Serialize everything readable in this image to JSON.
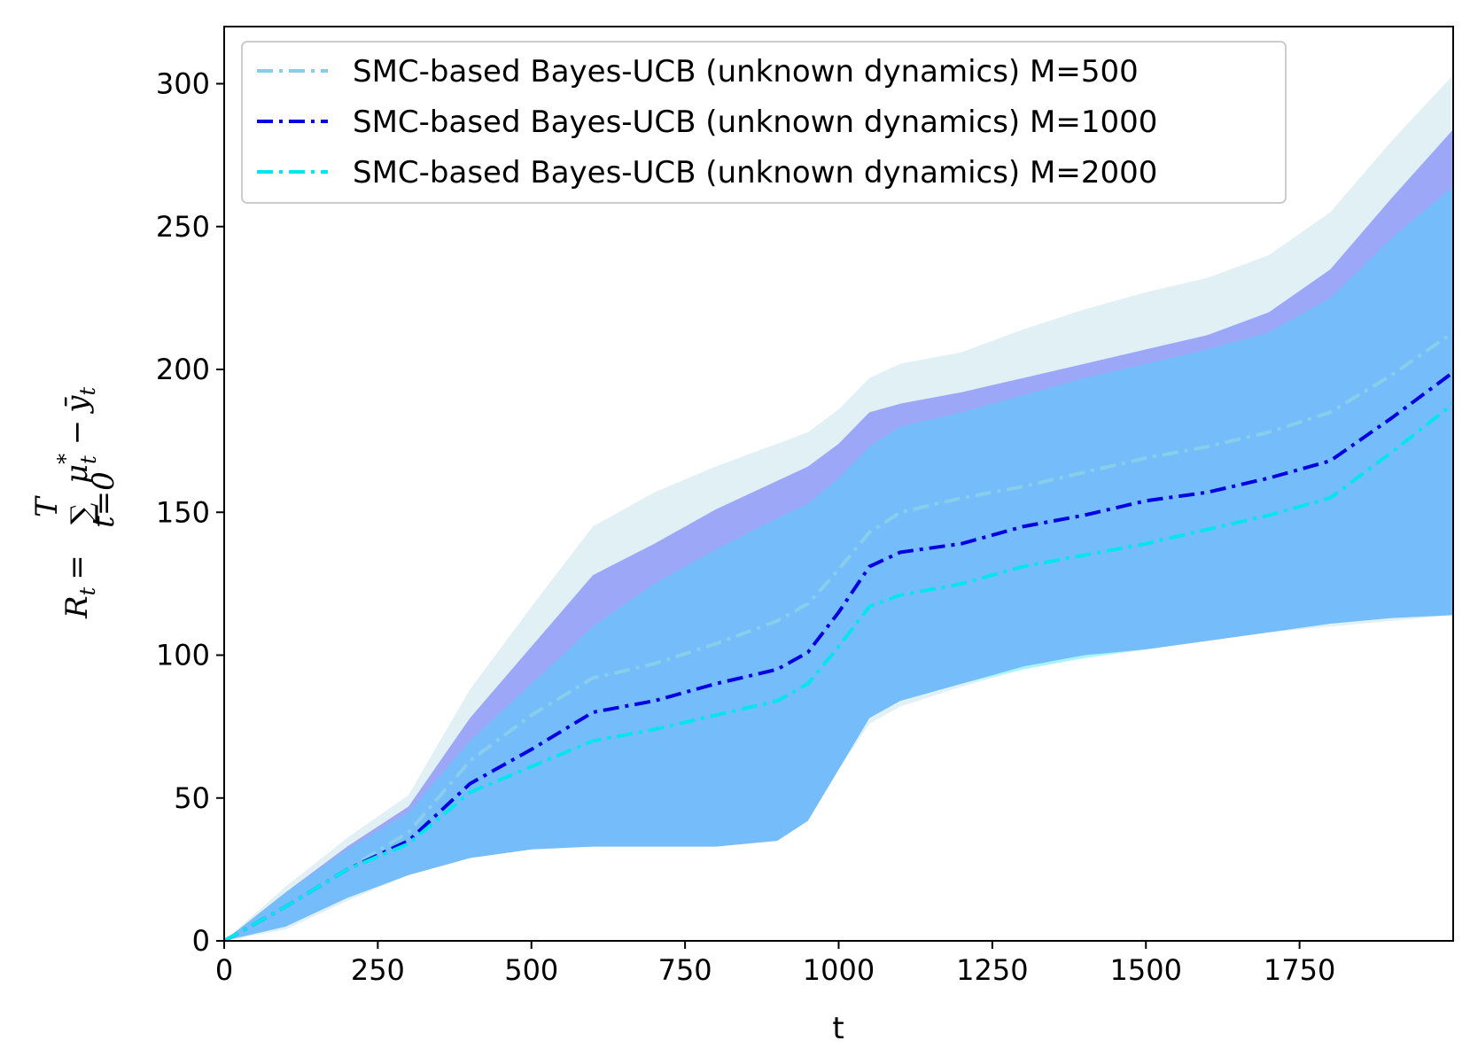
{
  "chart_data": {
    "type": "line",
    "title": "",
    "xlabel": "t",
    "ylabel": "R_t = ∑_{t=0}^{T} μ*_t − ȳ_t",
    "ylabel_parts": {
      "lhs": "R",
      "lhs_sub": "t",
      "eq": "=",
      "sum": "∑",
      "sum_upper": "T",
      "sum_lower": "t=0",
      "mu": "μ",
      "mu_sup": "*",
      "mu_sub": "t",
      "minus": "−",
      "y": "ȳ",
      "y_sub": "t"
    },
    "xlim": [
      0,
      2000
    ],
    "ylim": [
      0,
      320
    ],
    "xticks": [
      0,
      250,
      500,
      750,
      1000,
      1250,
      1500,
      1750
    ],
    "yticks": [
      0,
      50,
      100,
      150,
      200,
      250,
      300
    ],
    "legend_position": "top-left",
    "series": [
      {
        "name": "SMC-based Bayes-UCB (unknown dynamics) M=500",
        "color": "#87ceeb",
        "band_color": "#add8e6",
        "band_opacity": 0.38,
        "x": [
          0,
          100,
          200,
          300,
          400,
          500,
          600,
          700,
          800,
          900,
          950,
          1000,
          1050,
          1100,
          1200,
          1300,
          1400,
          1500,
          1600,
          1700,
          1800,
          1900,
          2000
        ],
        "mean": [
          0,
          12,
          25,
          38,
          63,
          79,
          92,
          97,
          104,
          112,
          118,
          130,
          143,
          150,
          155,
          159,
          164,
          169,
          173,
          178,
          185,
          198,
          213
        ],
        "upper": [
          0,
          19,
          36,
          51,
          88,
          117,
          145,
          157,
          166,
          174,
          178,
          186,
          197,
          202,
          206,
          214,
          221,
          227,
          232,
          240,
          255,
          280,
          303
        ],
        "lower": [
          0,
          4,
          14,
          23,
          29,
          32,
          33,
          33,
          33,
          35,
          42,
          60,
          76,
          82,
          89,
          95,
          99,
          102,
          105,
          108,
          110,
          112,
          114
        ]
      },
      {
        "name": "SMC-based Bayes-UCB (unknown dynamics) M=1000",
        "color": "#0000e0",
        "band_color": "#0000ff",
        "band_opacity": 0.3,
        "x": [
          0,
          100,
          200,
          300,
          400,
          500,
          600,
          700,
          800,
          900,
          950,
          1000,
          1050,
          1100,
          1200,
          1300,
          1400,
          1500,
          1600,
          1700,
          1800,
          1900,
          2000
        ],
        "mean": [
          0,
          12,
          25,
          35,
          55,
          67,
          80,
          84,
          90,
          95,
          101,
          115,
          131,
          136,
          139,
          145,
          149,
          154,
          157,
          162,
          168,
          183,
          199
        ],
        "upper": [
          0,
          17,
          33,
          47,
          78,
          103,
          128,
          139,
          151,
          161,
          166,
          174,
          185,
          188,
          192,
          197,
          202,
          207,
          212,
          220,
          235,
          260,
          284
        ],
        "lower": [
          0,
          5,
          15,
          23,
          29,
          32,
          33,
          33,
          33,
          35,
          42,
          60,
          78,
          84,
          90,
          96,
          100,
          102,
          105,
          108,
          111,
          113,
          114
        ]
      },
      {
        "name": "SMC-based Bayes-UCB (unknown dynamics) M=2000",
        "color": "#00e5ee",
        "band_color": "#00ffff",
        "band_opacity": 0.25,
        "x": [
          0,
          100,
          200,
          300,
          400,
          500,
          600,
          700,
          800,
          900,
          950,
          1000,
          1050,
          1100,
          1200,
          1300,
          1400,
          1500,
          1600,
          1700,
          1800,
          1900,
          2000
        ],
        "mean": [
          0,
          12,
          25,
          34,
          52,
          61,
          70,
          74,
          79,
          84,
          90,
          103,
          117,
          121,
          125,
          131,
          135,
          139,
          144,
          149,
          155,
          171,
          188
        ],
        "upper": [
          0,
          17,
          32,
          45,
          70,
          90,
          110,
          125,
          137,
          148,
          153,
          162,
          173,
          180,
          185,
          191,
          197,
          202,
          207,
          213,
          225,
          246,
          264
        ],
        "lower": [
          0,
          5,
          15,
          23,
          29,
          32,
          33,
          33,
          33,
          35,
          42,
          60,
          78,
          84,
          90,
          95,
          99,
          102,
          105,
          108,
          111,
          113,
          114
        ]
      }
    ]
  }
}
